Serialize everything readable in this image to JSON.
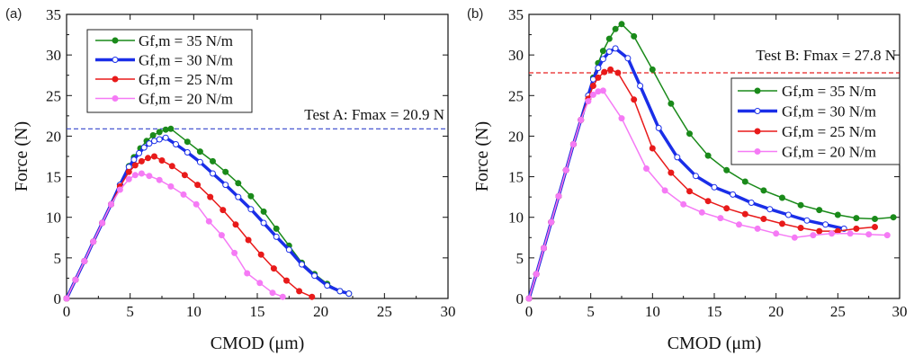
{
  "chart_data": [
    {
      "type": "line",
      "panel_label": "(a)",
      "xlabel": "CMOD (μm)",
      "ylabel": "Force (N)",
      "xlim": [
        0,
        30
      ],
      "ylim": [
        0,
        35
      ],
      "xticks": [
        0,
        5,
        10,
        15,
        20,
        25,
        30
      ],
      "yticks": [
        0,
        5,
        10,
        15,
        20,
        25,
        30,
        35
      ],
      "legend_position": "top-left",
      "reference_line": {
        "y": 20.9,
        "color": "#3344cc",
        "label": "Test A: Fmax = 20.9 N"
      },
      "series": [
        {
          "name": "Gf,m = 35 N/m",
          "color": "#1a8a1a",
          "marker": "filled",
          "width": 1.5,
          "x": [
            0,
            0.7,
            1.4,
            2.1,
            2.8,
            3.5,
            4.2,
            4.9,
            5.3,
            5.8,
            6.3,
            6.8,
            7.3,
            7.8,
            8.2,
            9.5,
            10.5,
            11.5,
            12.5,
            13.5,
            14.5,
            15.5,
            16.5,
            17.5,
            18.5,
            19.5,
            20.5,
            21.5,
            22.2
          ],
          "y": [
            0,
            2.3,
            4.6,
            7,
            9.3,
            11.6,
            14,
            16.3,
            17.4,
            18.5,
            19.4,
            20.1,
            20.5,
            20.8,
            20.9,
            19.3,
            18.1,
            16.9,
            15.6,
            14.2,
            12.6,
            10.7,
            8.6,
            6.5,
            4.4,
            3,
            1.8,
            0.9,
            0.6
          ]
        },
        {
          "name": "Gf,m = 30 N/m",
          "color": "#1a2ee8",
          "marker": "open",
          "width": 3.5,
          "x": [
            0,
            0.7,
            1.4,
            2.1,
            2.8,
            3.5,
            4.2,
            4.9,
            5.3,
            5.7,
            6.1,
            6.5,
            6.9,
            7.3,
            7.8,
            8.6,
            9.5,
            10.5,
            11.5,
            12.5,
            13.5,
            14.5,
            15.5,
            16.5,
            17.5,
            18.5,
            19.5,
            20.5,
            21.5,
            22.2
          ],
          "y": [
            0,
            2.3,
            4.6,
            7,
            9.3,
            11.6,
            14,
            16.2,
            17.1,
            17.9,
            18.6,
            19.1,
            19.4,
            19.6,
            19.8,
            19,
            18,
            16.8,
            15.4,
            14,
            12.5,
            11,
            9.3,
            7.6,
            6,
            4.2,
            2.8,
            1.6,
            0.9,
            0.6
          ]
        },
        {
          "name": "Gf,m = 25 N/m",
          "color": "#e81a1a",
          "marker": "filled",
          "width": 1.5,
          "x": [
            0,
            0.7,
            1.4,
            2.1,
            2.8,
            3.5,
            4.2,
            4.9,
            5.4,
            5.9,
            6.4,
            6.9,
            7.5,
            8.3,
            9.3,
            10.3,
            11.3,
            12.3,
            13.3,
            14.3,
            15.3,
            16.3,
            17.3,
            18.3,
            19.3
          ],
          "y": [
            0,
            2.3,
            4.6,
            7,
            9.3,
            11.6,
            13.8,
            15.6,
            16.4,
            16.9,
            17.3,
            17.5,
            17,
            16.3,
            15.2,
            14,
            12.5,
            10.9,
            9.1,
            7.2,
            5.4,
            3.7,
            2.2,
            0.9,
            0.2
          ]
        },
        {
          "name": "Gf,m = 20 N/m",
          "color": "#f57af5",
          "marker": "filled",
          "width": 1.5,
          "x": [
            0,
            0.7,
            1.4,
            2.1,
            2.8,
            3.5,
            4.2,
            4.9,
            5.4,
            5.9,
            6.5,
            7.3,
            8.2,
            9.2,
            10.2,
            11.2,
            12.2,
            13.2,
            14.2,
            15.2,
            16.2,
            17
          ],
          "y": [
            0,
            2.3,
            4.6,
            7,
            9.3,
            11.6,
            13.4,
            14.7,
            15.2,
            15.4,
            15.1,
            14.6,
            13.8,
            12.8,
            11.6,
            9.5,
            7.8,
            5.6,
            3.1,
            1.9,
            0.7,
            0.2
          ]
        }
      ]
    },
    {
      "type": "line",
      "panel_label": "(b)",
      "xlabel": "CMOD (μm)",
      "ylabel": "Force (N)",
      "xlim": [
        0,
        30
      ],
      "ylim": [
        0,
        35
      ],
      "xticks": [
        0,
        5,
        10,
        15,
        20,
        25,
        30
      ],
      "yticks": [
        0,
        5,
        10,
        15,
        20,
        25,
        30,
        35
      ],
      "legend_position": "right",
      "reference_line": {
        "y": 27.8,
        "color": "#e82020",
        "label": "Test B: Fmax =  27.8 N"
      },
      "series": [
        {
          "name": "Gf,m = 35 N/m",
          "color": "#1a8a1a",
          "marker": "filled",
          "width": 1.5,
          "x": [
            0,
            0.6,
            1.2,
            1.8,
            2.4,
            3,
            3.6,
            4.2,
            4.8,
            5.2,
            5.6,
            6,
            6.5,
            7,
            7.5,
            8.5,
            10,
            11.5,
            13,
            14.5,
            16,
            17.5,
            19,
            20.5,
            22,
            23.5,
            25,
            26.5,
            28,
            29.5
          ],
          "y": [
            0,
            3,
            6.2,
            9.4,
            12.6,
            15.8,
            19,
            22,
            25,
            27.2,
            29,
            30.5,
            32,
            33.2,
            33.8,
            32.3,
            28.2,
            24,
            20.3,
            17.6,
            15.8,
            14.4,
            13.3,
            12.4,
            11.5,
            10.9,
            10.3,
            9.9,
            9.8,
            10
          ]
        },
        {
          "name": "Gf,m = 30 N/m",
          "color": "#1a2ee8",
          "marker": "open",
          "width": 3.5,
          "x": [
            0,
            0.6,
            1.2,
            1.8,
            2.4,
            3,
            3.6,
            4.2,
            4.8,
            5.2,
            5.6,
            6,
            6.5,
            7,
            8,
            9,
            10.5,
            12,
            13.5,
            15,
            16.5,
            18,
            19.5,
            21,
            22.5,
            24,
            25.5
          ],
          "y": [
            0,
            3,
            6.2,
            9.4,
            12.6,
            15.8,
            19,
            22,
            25,
            27,
            28.4,
            29.5,
            30.4,
            30.8,
            29.6,
            26.2,
            21,
            17.4,
            15.1,
            13.7,
            12.8,
            11.8,
            11,
            10.3,
            9.6,
            9.1,
            8.6
          ]
        },
        {
          "name": "Gf,m = 25 N/m",
          "color": "#e81a1a",
          "marker": "filled",
          "width": 1.5,
          "x": [
            0,
            0.6,
            1.2,
            1.8,
            2.4,
            3,
            3.6,
            4.2,
            4.8,
            5.2,
            5.6,
            6.1,
            6.6,
            7.2,
            8.5,
            10,
            11.5,
            13,
            14.5,
            16,
            17.5,
            19,
            20.5,
            22,
            23.5,
            25,
            26.5,
            28
          ],
          "y": [
            0,
            3,
            6.2,
            9.4,
            12.6,
            15.8,
            19,
            22,
            24.6,
            26.2,
            27.2,
            27.9,
            28.2,
            27.8,
            24.5,
            18.5,
            15.5,
            13.2,
            12,
            11.1,
            10.4,
            9.8,
            9.2,
            8.7,
            8.3,
            8.3,
            8.6,
            8.8
          ]
        },
        {
          "name": "Gf,m = 20 N/m",
          "color": "#f57af5",
          "marker": "filled",
          "width": 1.5,
          "x": [
            0,
            0.6,
            1.2,
            1.8,
            2.4,
            3,
            3.6,
            4.2,
            4.8,
            5.2,
            5.6,
            6,
            7.5,
            9.5,
            11,
            12.5,
            14,
            15.5,
            17,
            18.5,
            20,
            21.5,
            23,
            24.5,
            26,
            27.5,
            29
          ],
          "y": [
            0,
            3,
            6.2,
            9.4,
            12.6,
            15.8,
            19,
            22,
            24.3,
            25.1,
            25.5,
            25.6,
            22.2,
            16,
            13.3,
            11.6,
            10.6,
            9.9,
            9.1,
            8.6,
            8,
            7.5,
            7.8,
            8,
            8,
            7.9,
            7.8
          ]
        }
      ]
    }
  ],
  "annotations": {
    "a_ref_label": "Test A: Fmax = 20.9 N",
    "b_ref_label": "Test B: Fmax =  27.8 N"
  }
}
